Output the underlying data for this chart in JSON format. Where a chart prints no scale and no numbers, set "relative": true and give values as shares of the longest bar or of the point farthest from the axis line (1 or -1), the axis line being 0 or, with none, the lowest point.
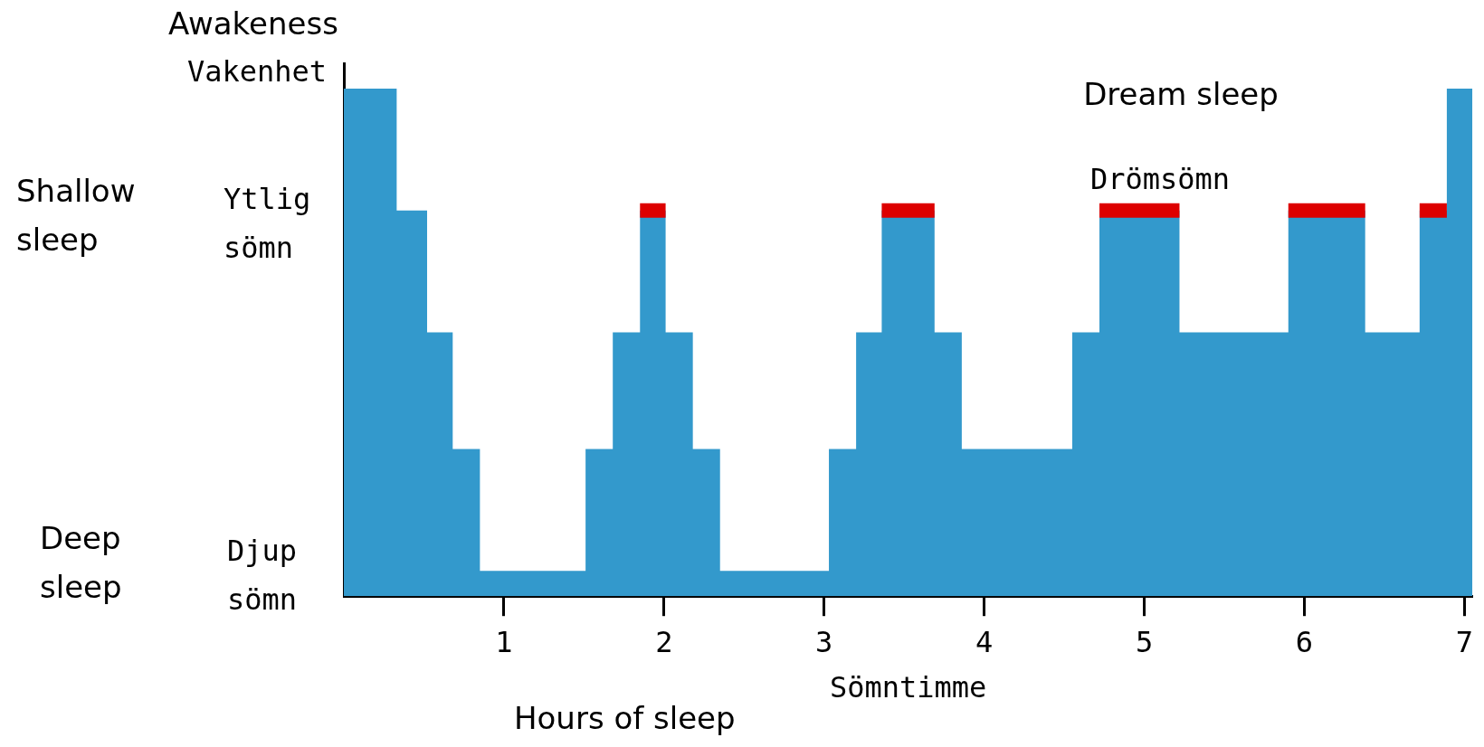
{
  "chart_data": {
    "type": "step",
    "relative": true,
    "xlabel": "Sömntimme",
    "annotations": [
      "Hours of sleep",
      "Dream sleep",
      "Drömsömn",
      "Awakeness",
      "Vakenhet",
      "Shallow sleep",
      "Ytlig sömn",
      "Deep sleep",
      "Djup sömn"
    ],
    "series": [
      {
        "type": "area",
        "color": "#3399cc",
        "x": [
          0,
          0.33,
          0.52,
          0.68,
          0.85,
          1.51,
          1.68,
          1.85,
          2.01,
          2.18,
          2.35,
          3.03,
          3.2,
          3.36,
          3.69,
          3.86,
          4.55,
          4.72,
          5.22,
          5.9,
          6.38,
          6.72,
          6.89,
          7.05
        ],
        "values": [
          1,
          0.76,
          0.52,
          0.29,
          0.05,
          0.29,
          0.52,
          0.76,
          0.52,
          0.29,
          0.05,
          0.29,
          0.52,
          0.76,
          0.52,
          0.29,
          0.52,
          0.76,
          0.52,
          0.76,
          0.52,
          0.76,
          1,
          1
        ]
      },
      {
        "color": "#dd0000",
        "x": [
          1.85,
          2.01
        ],
        "values": [
          0.76,
          0.76
        ]
      },
      {
        "color": "#dd0000",
        "x": [
          3.36,
          3.69
        ],
        "values": [
          0.76,
          0.76
        ]
      },
      {
        "color": "#dd0000",
        "x": [
          4.72,
          5.22
        ],
        "values": [
          0.76,
          0.76
        ]
      },
      {
        "color": "#dd0000",
        "x": [
          5.9,
          6.38
        ],
        "values": [
          0.76,
          0.76
        ]
      },
      {
        "color": "#dd0000",
        "x": [
          6.72,
          6.89
        ],
        "values": [
          0.76,
          0.76
        ]
      }
    ],
    "xlim": [
      0,
      7.05
    ],
    "xticks": [
      1,
      2,
      3,
      4,
      5,
      6,
      7
    ],
    "grid": false,
    "legend": false
  }
}
